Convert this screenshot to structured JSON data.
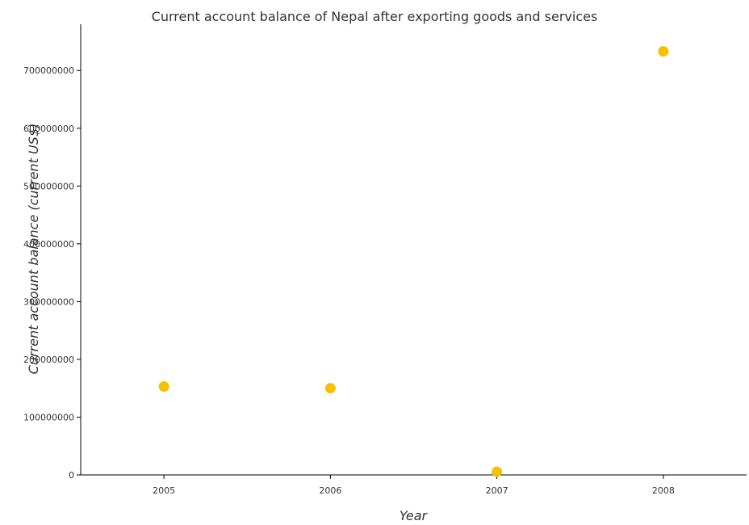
{
  "chart_data": {
    "type": "scatter",
    "title": "Current account balance of Nepal after exporting goods and services",
    "xlabel": "Year",
    "ylabel": "Current account balance (current US$)",
    "categories": [
      "2005",
      "2006",
      "2007",
      "2008"
    ],
    "values": [
      153000000,
      150000000,
      5500000,
      733000000
    ],
    "ylim": [
      0,
      780000000
    ],
    "yticks": [
      0,
      100000000,
      200000000,
      300000000,
      400000000,
      500000000,
      600000000,
      700000000
    ],
    "ytick_labels": [
      "0",
      "100000000",
      "200000000",
      "300000000",
      "400000000",
      "500000000",
      "600000000",
      "700000000"
    ],
    "marker_color": "#f5c000",
    "grid": false
  }
}
